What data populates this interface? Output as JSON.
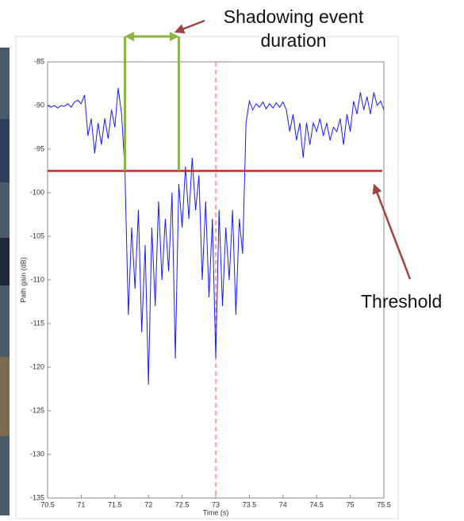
{
  "chart_data": {
    "type": "line",
    "x": [
      70.5,
      70.55,
      70.6,
      70.65,
      70.7,
      70.75,
      70.8,
      70.85,
      70.9,
      70.95,
      71.0,
      71.05,
      71.1,
      71.15,
      71.2,
      71.25,
      71.3,
      71.35,
      71.4,
      71.45,
      71.5,
      71.55,
      71.6,
      71.65,
      71.7,
      71.75,
      71.8,
      71.85,
      71.9,
      71.95,
      72.0,
      72.05,
      72.1,
      72.15,
      72.2,
      72.25,
      72.3,
      72.35,
      72.4,
      72.45,
      72.5,
      72.55,
      72.6,
      72.65,
      72.7,
      72.75,
      72.8,
      72.85,
      72.9,
      72.95,
      73.0,
      73.05,
      73.1,
      73.15,
      73.2,
      73.25,
      73.3,
      73.35,
      73.4,
      73.45,
      73.5,
      73.55,
      73.6,
      73.65,
      73.7,
      73.75,
      73.8,
      73.85,
      73.9,
      73.95,
      74.0,
      74.05,
      74.1,
      74.15,
      74.2,
      74.25,
      74.3,
      74.35,
      74.4,
      74.45,
      74.5,
      74.55,
      74.6,
      74.65,
      74.7,
      74.75,
      74.8,
      74.85,
      74.9,
      74.95,
      75.0,
      75.05,
      75.1,
      75.15,
      75.2,
      75.25,
      75.3,
      75.35,
      75.4,
      75.45,
      75.5
    ],
    "series": [
      {
        "color": "#1a1aff",
        "values": [
          -90,
          -90.2,
          -90,
          -90.3,
          -90,
          -90.1,
          -89.8,
          -90.2,
          -89.6,
          -89.4,
          -89.8,
          -88.8,
          -93.5,
          -91.5,
          -95.5,
          -92,
          -94.5,
          -91.5,
          -93.8,
          -90.5,
          -92.5,
          -88,
          -91,
          -97.5,
          -114,
          -104,
          -111,
          -102,
          -116,
          -106,
          -122,
          -104,
          -113,
          -101,
          -110,
          -103,
          -109,
          -100,
          -119,
          -99,
          -104,
          -97,
          -103,
          -96,
          -102,
          -98,
          -110,
          -101,
          -112,
          -103,
          -119,
          -102,
          -113,
          -104,
          -110,
          -102,
          -114,
          -103,
          -107,
          -92,
          -89.5,
          -90.5,
          -89.8,
          -90.2,
          -89.6,
          -90.4,
          -89.8,
          -90.3,
          -89.7,
          -90.2,
          -89.6,
          -90.5,
          -93,
          -91,
          -94,
          -92,
          -96,
          -92,
          -94.5,
          -92,
          -93,
          -91.5,
          -93.5,
          -92,
          -94,
          -92.5,
          -93,
          -91.5,
          -94.5,
          -91,
          -93,
          -89.5,
          -91,
          -88.5,
          -90.5,
          -89,
          -91,
          -88.5,
          -90,
          -89.5,
          -90.5
        ]
      }
    ],
    "xlim": [
      70.5,
      75.5
    ],
    "ylim": [
      -135,
      -85
    ],
    "xticks": [
      70.5,
      71,
      71.5,
      72,
      72.5,
      73,
      73.5,
      74,
      74.5,
      75,
      75.5
    ],
    "yticks": [
      -85,
      -90,
      -95,
      -100,
      -105,
      -110,
      -115,
      -120,
      -125,
      -130,
      -135
    ],
    "xlabel": "Time (s)",
    "ylabel": "Path gain (dB)",
    "threshold": -97.5,
    "threshold_color": "#c0282a",
    "marker_x": 73,
    "marker_color": "#ff6b6b",
    "event_start": 71.65,
    "event_end": 72.45,
    "event_color": "#8db24a",
    "annotations": [
      "Shadowing event duration",
      "Threshold"
    ]
  }
}
